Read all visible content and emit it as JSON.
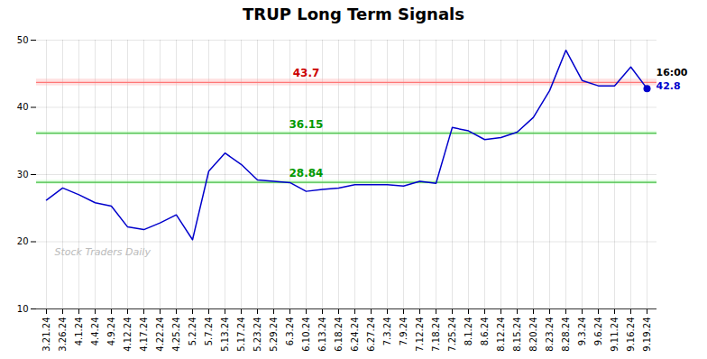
{
  "chart_data": {
    "type": "line",
    "title": "TRUP Long Term Signals",
    "categories": [
      "3.21.24",
      "3.26.24",
      "4.1.24",
      "4.4.24",
      "4.9.24",
      "4.12.24",
      "4.17.24",
      "4.22.24",
      "4.25.24",
      "5.2.24",
      "5.7.24",
      "5.13.24",
      "5.17.24",
      "5.23.24",
      "5.29.24",
      "6.3.24",
      "6.10.24",
      "6.13.24",
      "6.18.24",
      "6.24.24",
      "6.27.24",
      "7.3.24",
      "7.9.24",
      "7.12.24",
      "7.18.24",
      "7.25.24",
      "8.1.24",
      "8.6.24",
      "8.12.24",
      "8.15.24",
      "8.20.24",
      "8.23.24",
      "8.28.24",
      "9.3.24",
      "9.6.24",
      "9.11.24",
      "9.16.24",
      "9.19.24"
    ],
    "values": [
      26.2,
      28.0,
      27.0,
      25.8,
      25.3,
      22.2,
      21.8,
      22.8,
      24.0,
      20.3,
      30.5,
      33.2,
      31.5,
      29.2,
      29.0,
      28.8,
      27.5,
      27.8,
      28.0,
      28.5,
      28.5,
      28.5,
      28.3,
      29.0,
      28.7,
      37.0,
      36.5,
      35.2,
      35.5,
      36.3,
      38.5,
      42.5,
      48.5,
      44.0,
      43.2,
      43.2,
      46.0,
      42.8
    ],
    "color": "#0000cc",
    "ylim": [
      10,
      50
    ],
    "yticks": [
      10,
      20,
      30,
      40,
      50
    ],
    "grid": true,
    "hlines": [
      {
        "value": 43.7,
        "label": "43.7",
        "color": "#ff7777",
        "label_color": "#cc0000",
        "band": [
          43.2,
          44.2
        ],
        "band_color": "#ffaaaa"
      },
      {
        "value": 36.15,
        "label": "36.15",
        "color": "#44bb44",
        "label_color": "#009900",
        "band": [
          35.85,
          36.45
        ],
        "band_color": "#aaffaa"
      },
      {
        "value": 28.84,
        "label": "28.84",
        "color": "#44bb44",
        "label_color": "#009900",
        "band": [
          28.54,
          29.14
        ],
        "band_color": "#aaffaa"
      }
    ],
    "watermark": {
      "text": "Stock Traders Daily",
      "color": "#bbbbbb"
    },
    "end_marker_color": "#0000cc",
    "end_labels": [
      {
        "text": "16:00",
        "color": "#000000"
      },
      {
        "text": "42.8",
        "color": "#0000cc"
      }
    ]
  }
}
